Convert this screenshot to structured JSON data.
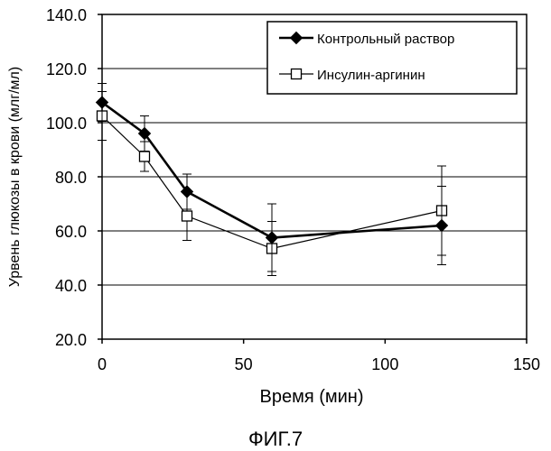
{
  "chart_data": {
    "type": "line",
    "xlabel": "Время (мин)",
    "ylabel": "Урвень глюкозы в крови (млг/мл)",
    "xlim": [
      0,
      150
    ],
    "ylim": [
      20,
      140
    ],
    "xticks": [
      0,
      50,
      100,
      150
    ],
    "yticks": [
      20,
      40,
      60,
      80,
      100,
      120,
      140
    ],
    "ytick_labels": [
      "20.0",
      "40.0",
      "60.0",
      "80.0",
      "100.0",
      "120.0",
      "140.0"
    ],
    "grid": "horizontal",
    "legend_position": "top-right",
    "error_bars": true,
    "series": [
      {
        "name": "Контрольный раствор",
        "marker": "filled-diamond",
        "color": "#000000",
        "x": [
          0,
          15,
          30,
          60,
          120
        ],
        "y": [
          107.5,
          96,
          74.5,
          57.5,
          62
        ],
        "err": [
          7,
          6.5,
          6.5,
          12.5,
          14.5
        ]
      },
      {
        "name": "Инсулин-аргинин",
        "marker": "open-square",
        "color": "#000000",
        "x": [
          0,
          15,
          30,
          60,
          120
        ],
        "y": [
          102.5,
          87.5,
          65.5,
          53.5,
          67.5
        ],
        "err": [
          9,
          5.5,
          9,
          10,
          16.5
        ]
      }
    ]
  },
  "figure_label": "ФИГ.7"
}
